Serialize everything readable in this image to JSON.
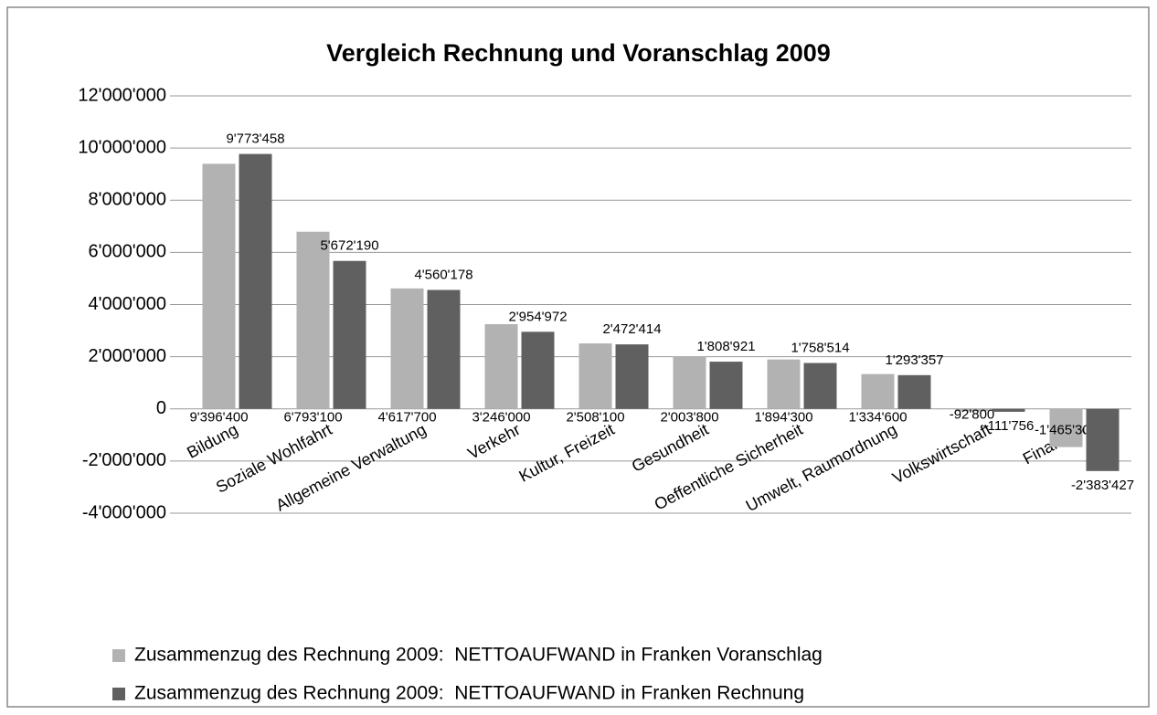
{
  "chart_data": {
    "type": "bar",
    "title": "Vergleich Rechnung und Voranschlag 2009",
    "categories": [
      "Bildung",
      "Soziale Wohlfahrt",
      "Allgemeine Verwaltung",
      "Verkehr",
      "Kultur, Freizeit",
      "Gesundheit",
      "Oeffentliche Sicherheit",
      "Umwelt, Raumordnung",
      "Volkswirtschaft",
      "Finanzen"
    ],
    "series": [
      {
        "name": "Zusammenzug des Rechnung 2009:  NETTOAUFWAND in Franken Voranschlag",
        "color": "#b2b2b2",
        "values": [
          9396400,
          6793100,
          4617700,
          3246000,
          2508100,
          2003800,
          1894300,
          1334600,
          -92800,
          -1465300
        ],
        "value_labels": [
          "9'396'400",
          "6'793'100",
          "4'617'700",
          "3'246'000",
          "2'508'100",
          "2'003'800",
          "1'894'300",
          "1'334'600",
          "-92'800",
          "-1'465'300"
        ]
      },
      {
        "name": "Zusammenzug des Rechnung 2009:  NETTOAUFWAND in Franken Rechnung",
        "color": "#606060",
        "values": [
          9773458,
          5672190,
          4560178,
          2954972,
          2472414,
          1808921,
          1758514,
          1293357,
          -111756,
          -2383427
        ],
        "value_labels": [
          "9'773'458",
          "5'672'190",
          "4'560'178",
          "2'954'972",
          "2'472'414",
          "1'808'921",
          "1'758'514",
          "1'293'357",
          "-111'756",
          "-2'383'427"
        ]
      }
    ],
    "ylim": [
      -4000000,
      12000000
    ],
    "yticks": [
      {
        "value": -4000000,
        "label": "-4'000'000"
      },
      {
        "value": -2000000,
        "label": "-2'000'000"
      },
      0,
      {
        "value": 2000000,
        "label": "2'000'000"
      },
      {
        "value": 4000000,
        "label": "4'000'000"
      },
      {
        "value": 6000000,
        "label": "6'000'000"
      },
      {
        "value": 8000000,
        "label": "8'000'000"
      },
      {
        "value": 10000000,
        "label": "10'000'000"
      },
      {
        "value": 12000000,
        "label": "12'000'000"
      }
    ],
    "grid": true,
    "legend": "bottom"
  }
}
